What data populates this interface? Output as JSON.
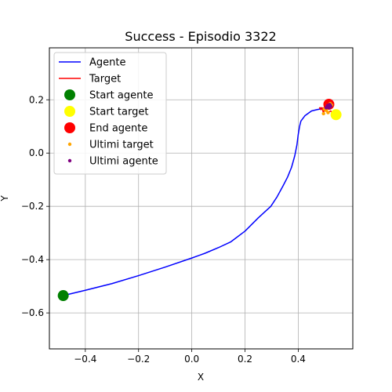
{
  "chart_data": {
    "type": "line",
    "title": "Success - Episodio 3322",
    "xlabel": "X",
    "ylabel": "Y",
    "xlim": [
      -0.535,
      0.605
    ],
    "ylim": [
      -0.735,
      0.395
    ],
    "xticks": [
      -0.4,
      -0.2,
      0.0,
      0.2,
      0.4
    ],
    "yticks": [
      -0.6,
      -0.4,
      -0.2,
      0.0,
      0.2
    ],
    "xtick_labels": [
      "−0.4",
      "−0.2",
      "0.0",
      "0.2",
      "0.4"
    ],
    "ytick_labels": [
      "−0.6",
      "−0.4",
      "−0.2",
      "0.0",
      "0.2"
    ],
    "grid": true,
    "legend_position": "top-left",
    "series": [
      {
        "name": "Agente",
        "kind": "line",
        "color": "#0000ff",
        "points": [
          [
            -0.483,
            -0.535
          ],
          [
            -0.4,
            -0.515
          ],
          [
            -0.3,
            -0.49
          ],
          [
            -0.2,
            -0.46
          ],
          [
            -0.1,
            -0.428
          ],
          [
            0.0,
            -0.394
          ],
          [
            0.05,
            -0.376
          ],
          [
            0.1,
            -0.355
          ],
          [
            0.147,
            -0.333
          ],
          [
            0.2,
            -0.293
          ],
          [
            0.25,
            -0.243
          ],
          [
            0.297,
            -0.2
          ],
          [
            0.32,
            -0.165
          ],
          [
            0.343,
            -0.123
          ],
          [
            0.36,
            -0.09
          ],
          [
            0.375,
            -0.053
          ],
          [
            0.387,
            -0.01
          ],
          [
            0.395,
            0.03
          ],
          [
            0.4,
            0.07
          ],
          [
            0.405,
            0.1
          ],
          [
            0.41,
            0.12
          ],
          [
            0.425,
            0.14
          ],
          [
            0.45,
            0.158
          ],
          [
            0.47,
            0.163
          ],
          [
            0.49,
            0.167
          ],
          [
            0.505,
            0.17
          ],
          [
            0.51,
            0.178
          ],
          [
            0.518,
            0.182
          ],
          [
            0.522,
            0.176
          ],
          [
            0.517,
            0.17
          ],
          [
            0.512,
            0.172
          ],
          [
            0.52,
            0.18
          ],
          [
            0.515,
            0.183
          ]
        ]
      },
      {
        "name": "Target",
        "kind": "line",
        "color": "#ff0000",
        "points": [
          [
            0.542,
            0.144
          ],
          [
            0.53,
            0.15
          ],
          [
            0.522,
            0.158
          ],
          [
            0.512,
            0.152
          ],
          [
            0.505,
            0.16
          ],
          [
            0.498,
            0.165
          ],
          [
            0.495,
            0.148
          ],
          [
            0.49,
            0.17
          ],
          [
            0.48,
            0.17
          ],
          [
            0.485,
            0.163
          ],
          [
            0.5,
            0.173
          ],
          [
            0.51,
            0.178
          ],
          [
            0.52,
            0.186
          ],
          [
            0.525,
            0.18
          ],
          [
            0.518,
            0.175
          ],
          [
            0.512,
            0.183
          ],
          [
            0.515,
            0.188
          ]
        ]
      },
      {
        "name": "Start agente",
        "kind": "marker",
        "color": "#008000",
        "size": 7,
        "x": -0.483,
        "y": -0.535
      },
      {
        "name": "Start target",
        "kind": "marker",
        "color": "#ffff00",
        "size": 7,
        "x": 0.542,
        "y": 0.144
      },
      {
        "name": "End agente",
        "kind": "marker",
        "color": "#ff0000",
        "size": 7,
        "x": 0.515,
        "y": 0.183
      },
      {
        "name": "Ultimi target",
        "kind": "scatter",
        "color": "#ffa500",
        "size": 2.2,
        "points": [
          [
            0.505,
            0.16
          ],
          [
            0.512,
            0.152
          ],
          [
            0.498,
            0.165
          ],
          [
            0.495,
            0.148
          ],
          [
            0.51,
            0.178
          ],
          [
            0.52,
            0.186
          ],
          [
            0.525,
            0.18
          ]
        ]
      },
      {
        "name": "Ultimi agente",
        "kind": "scatter",
        "color": "#800080",
        "size": 2.2,
        "points": [
          [
            0.505,
            0.17
          ],
          [
            0.51,
            0.178
          ],
          [
            0.518,
            0.182
          ],
          [
            0.522,
            0.176
          ],
          [
            0.517,
            0.17
          ],
          [
            0.512,
            0.172
          ],
          [
            0.52,
            0.18
          ]
        ]
      }
    ]
  }
}
